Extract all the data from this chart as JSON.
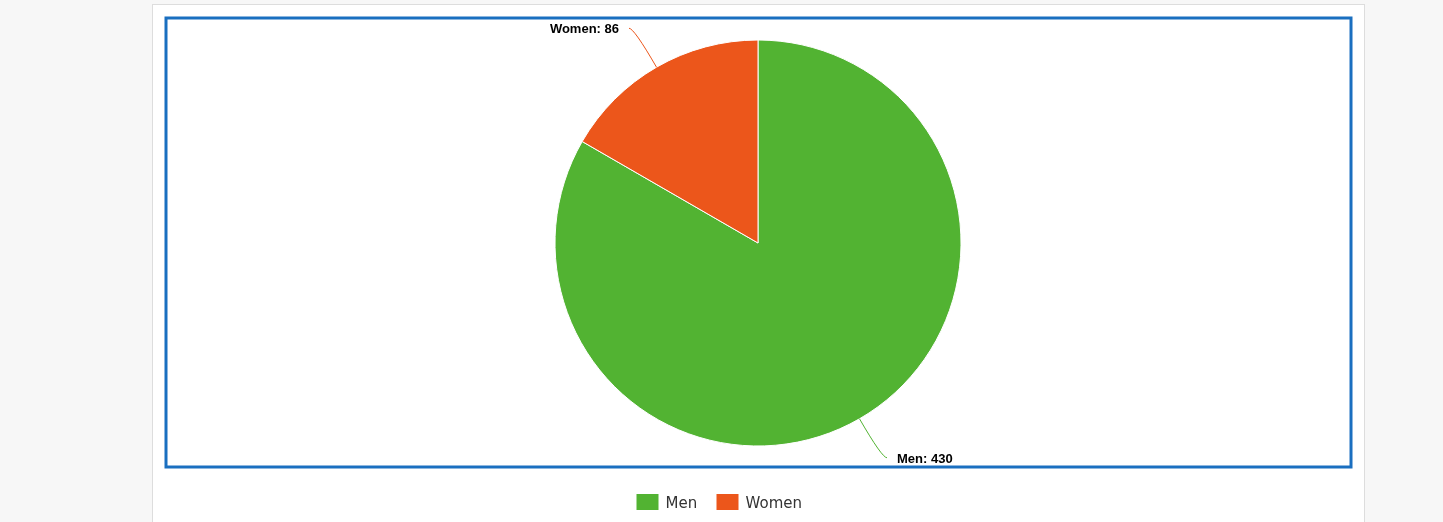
{
  "chart_data": {
    "type": "pie",
    "categories": [
      "Men",
      "Women"
    ],
    "values": [
      430,
      86
    ],
    "value_labels": [
      "Men: 430",
      "Women: 86"
    ],
    "colors": [
      "#52b332",
      "#ec561b"
    ],
    "legend": "bottom"
  }
}
